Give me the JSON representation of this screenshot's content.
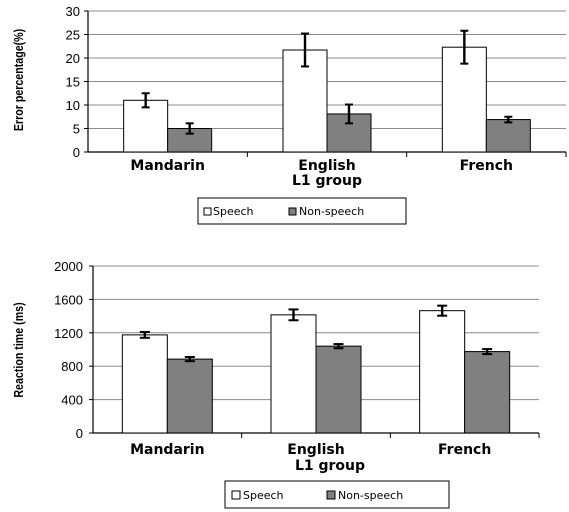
{
  "chart_data": [
    {
      "type": "bar",
      "categories": [
        "Mandarin",
        "English",
        "French"
      ],
      "series": [
        {
          "name": "Speech",
          "values": [
            11,
            21.7,
            22.3
          ],
          "errors": [
            1.5,
            3.5,
            3.5
          ],
          "color": "#ffffff"
        },
        {
          "name": "Non-speech",
          "values": [
            5,
            8.1,
            6.9
          ],
          "errors": [
            1.1,
            2.0,
            0.6
          ],
          "color": "#808080"
        }
      ],
      "xlabel": "L1 group",
      "ylabel": "Error percentage(%)",
      "ylim": [
        0,
        30
      ],
      "yticks": [
        "0",
        "5",
        "10",
        "15",
        "20",
        "25",
        "30"
      ],
      "grid": true,
      "legend": "bottom"
    },
    {
      "type": "bar",
      "categories": [
        "Mandarin",
        "English",
        "French"
      ],
      "series": [
        {
          "name": "Speech",
          "values": [
            1175,
            1415,
            1465
          ],
          "errors": [
            35,
            65,
            60
          ],
          "color": "#ffffff"
        },
        {
          "name": "Non-speech",
          "values": [
            885,
            1040,
            975
          ],
          "errors": [
            25,
            25,
            30
          ],
          "color": "#808080"
        }
      ],
      "xlabel": "L1 group",
      "ylabel": "Reaction time (ms)",
      "ylim": [
        0,
        2000
      ],
      "yticks": [
        "0",
        "400",
        "800",
        "1200",
        "1600",
        "2000"
      ],
      "grid": true,
      "legend": "bottom"
    }
  ]
}
